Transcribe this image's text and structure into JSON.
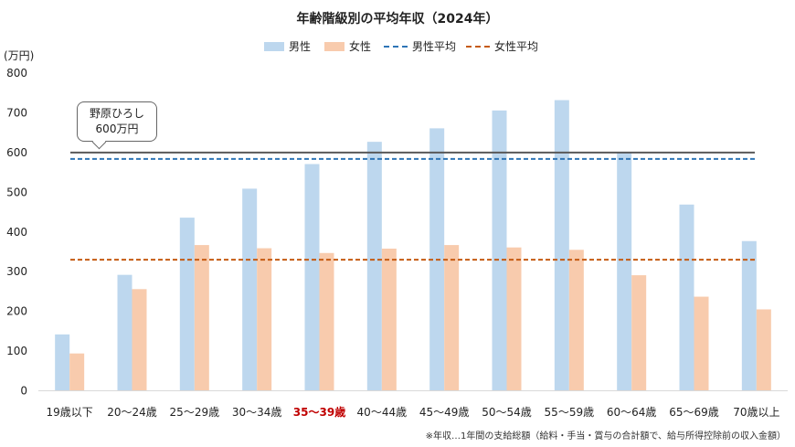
{
  "chart_data": {
    "type": "bar",
    "title": "年齢階級別の平均年収（2024年）",
    "unit_label": "(万円)",
    "categories": [
      "19歳以下",
      "20〜24歳",
      "25〜29歳",
      "30〜34歳",
      "35〜39歳",
      "40〜44歳",
      "45〜49歳",
      "50〜54歳",
      "55〜59歳",
      "60〜64歳",
      "65〜69歳",
      "70歳以上"
    ],
    "highlight_category": "35〜39歳",
    "highlight_color": "#c00000",
    "series": [
      {
        "name": "男性",
        "color": "#bdd7ee",
        "values": [
          142,
          292,
          436,
          509,
          571,
          627,
          661,
          706,
          732,
          602,
          469,
          377
        ]
      },
      {
        "name": "女性",
        "color": "#f8cbad",
        "values": [
          94,
          256,
          367,
          359,
          347,
          358,
          367,
          361,
          355,
          291,
          237,
          205
        ]
      }
    ],
    "reference_lines": [
      {
        "name": "男性平均",
        "value": 584,
        "color": "#2e75b6",
        "style": "dashed"
      },
      {
        "name": "女性平均",
        "value": 330,
        "color": "#c55a11",
        "style": "dashed"
      }
    ],
    "marker_line": {
      "value": 600,
      "color": "#595959"
    },
    "ylim": [
      0,
      800
    ],
    "yticks": [
      0,
      100,
      200,
      300,
      400,
      500,
      600,
      700,
      800
    ],
    "grid": false,
    "legend_position": "top"
  },
  "annotation": {
    "line1": "野原ひろし",
    "line2": "600万円"
  },
  "footnote": "※年収…1年間の支給総額（給料・手当・賞与の合計額で、給与所得控除前の収入金額）"
}
